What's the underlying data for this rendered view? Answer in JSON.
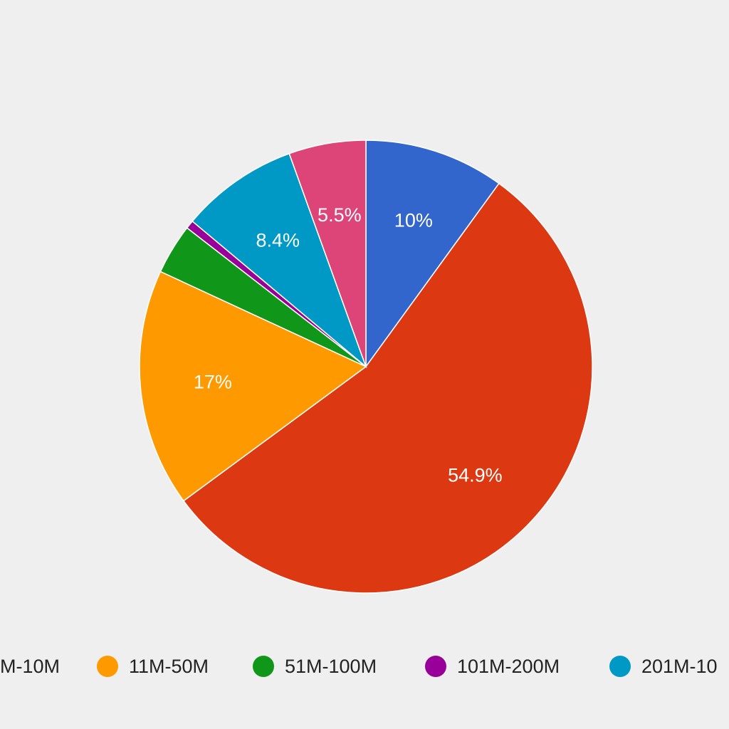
{
  "chart_data": {
    "type": "pie",
    "title": "",
    "start_angle": "top",
    "direction": "clockwise",
    "slices": [
      {
        "label": "",
        "value": 10.0,
        "display": "10%",
        "color": "#3366cc"
      },
      {
        "label": "",
        "value": 54.9,
        "display": "54.9%",
        "color": "#dc3912"
      },
      {
        "label": "11M-50M",
        "value": 17.0,
        "display": "17%",
        "color": "#ff9900"
      },
      {
        "label": "51M-100M",
        "value": 3.6,
        "display": "",
        "color": "#109618"
      },
      {
        "label": "101M-200M",
        "value": 0.6,
        "display": "",
        "color": "#990099"
      },
      {
        "label": "",
        "value": 8.4,
        "display": "8.4%",
        "color": "#0099c6"
      },
      {
        "label": "",
        "value": 5.5,
        "display": "5.5%",
        "color": "#dd4477"
      }
    ],
    "legend": {
      "position": "bottom",
      "items": [
        {
          "label": "M-10M",
          "color": "#dc3912"
        },
        {
          "label": "11M-50M",
          "color": "#ff9900"
        },
        {
          "label": "51M-100M",
          "color": "#109618"
        },
        {
          "label": "101M-200M",
          "color": "#990099"
        },
        {
          "label": "201M-10",
          "color": "#0099c6"
        }
      ]
    }
  }
}
